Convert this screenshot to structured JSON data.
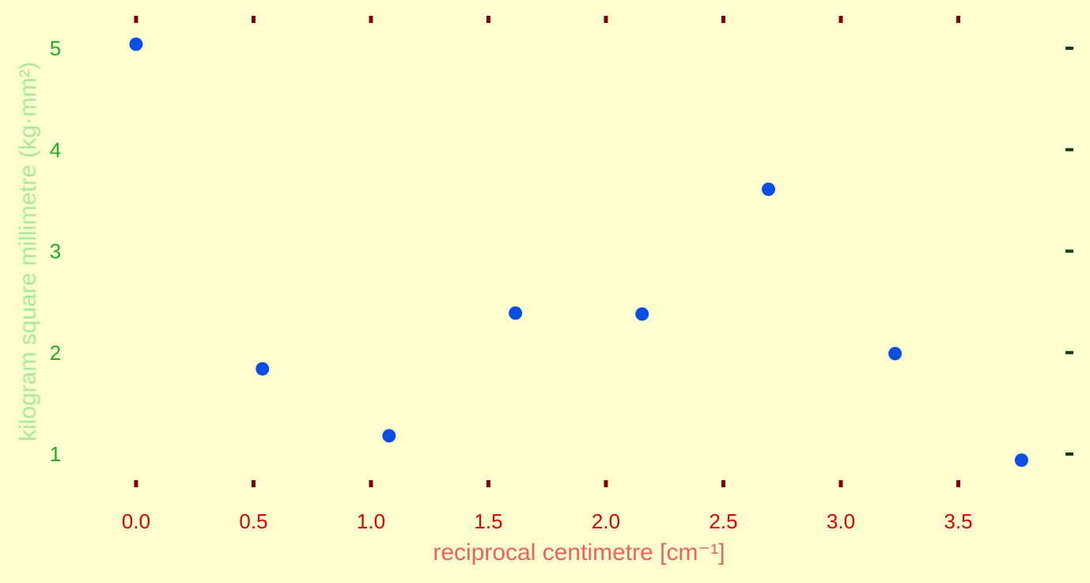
{
  "chart_data": {
    "type": "scatter",
    "title": "",
    "xlabel": "reciprocal centimetre [cm⁻¹]",
    "ylabel": "kilogram square millimetre (kg·mm²)",
    "xlim": [
      0.0,
      3.8
    ],
    "ylim": [
      0.9,
      5.1
    ],
    "grid": false,
    "legend": false,
    "xticks": [
      0.0,
      0.5,
      1.0,
      1.5,
      2.0,
      2.5,
      3.0,
      3.5
    ],
    "xtick_labels": [
      "0.0",
      "0.5",
      "1.0",
      "1.5",
      "2.0",
      "2.5",
      "3.0",
      "3.5"
    ],
    "yticks": [
      1,
      2,
      3,
      4,
      5
    ],
    "ytick_labels": [
      "1",
      "2",
      "3",
      "4",
      "5"
    ],
    "series": [
      {
        "color": "#0b4fe0",
        "x": [
          0.0,
          0.538,
          1.077,
          1.615,
          2.154,
          2.692,
          3.231,
          3.769
        ],
        "y": [
          5.04,
          1.84,
          1.18,
          2.39,
          2.38,
          3.61,
          1.99,
          0.94
        ]
      }
    ],
    "colors": {
      "background": "#ffffd0",
      "x_tick_mark": "#800000",
      "x_tick_label": "#e00000",
      "x_axis_label": "#f06060",
      "y_tick_mark": "#104010",
      "y_tick_label": "#20b020",
      "y_axis_label": "#a8eaa0",
      "marker": "#0b4fe0"
    }
  }
}
